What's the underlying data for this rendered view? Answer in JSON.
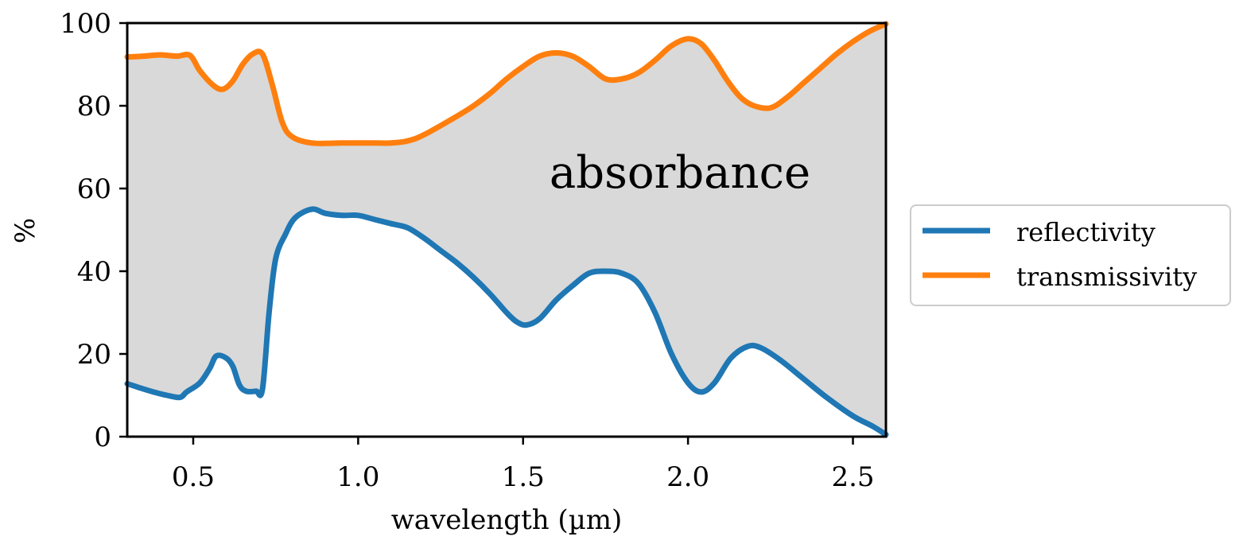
{
  "chart_data": {
    "type": "line",
    "xlabel": "wavelength (µm)",
    "ylabel": "%",
    "xlim": [
      0.3,
      2.6
    ],
    "ylim": [
      0,
      100
    ],
    "x_ticks": [
      0.5,
      1.0,
      1.5,
      2.0,
      2.5
    ],
    "x_tick_labels": [
      "0.5",
      "1.0",
      "1.5",
      "2.0",
      "2.5"
    ],
    "y_ticks": [
      0,
      20,
      40,
      60,
      80,
      100
    ],
    "y_tick_labels": [
      "0",
      "20",
      "40",
      "60",
      "80",
      "100"
    ],
    "grid": false,
    "legend_position": "outside-right",
    "fill_between": {
      "lower": "reflectivity",
      "upper": "transmissivity",
      "color": "#d9d9d9",
      "label": "absorbance"
    },
    "series": [
      {
        "name": "reflectivity",
        "color": "#1f77b4",
        "points": [
          [
            0.3,
            12.8
          ],
          [
            0.35,
            11.5
          ],
          [
            0.38,
            10.8
          ],
          [
            0.42,
            10
          ],
          [
            0.46,
            9.5
          ],
          [
            0.48,
            10.8
          ],
          [
            0.52,
            13
          ],
          [
            0.55,
            16.5
          ],
          [
            0.57,
            19.5
          ],
          [
            0.6,
            19
          ],
          [
            0.62,
            17
          ],
          [
            0.64,
            12.5
          ],
          [
            0.66,
            11
          ],
          [
            0.69,
            11
          ],
          [
            0.71,
            11.5
          ],
          [
            0.73,
            30
          ],
          [
            0.75,
            43
          ],
          [
            0.78,
            49
          ],
          [
            0.81,
            53
          ],
          [
            0.86,
            55
          ],
          [
            0.9,
            54
          ],
          [
            0.95,
            53.5
          ],
          [
            1.0,
            53.5
          ],
          [
            1.05,
            52.5
          ],
          [
            1.1,
            51.5
          ],
          [
            1.15,
            50.5
          ],
          [
            1.2,
            48
          ],
          [
            1.25,
            45
          ],
          [
            1.3,
            42
          ],
          [
            1.35,
            38.5
          ],
          [
            1.4,
            34.5
          ],
          [
            1.45,
            30
          ],
          [
            1.48,
            27.8
          ],
          [
            1.51,
            27
          ],
          [
            1.55,
            28.5
          ],
          [
            1.6,
            33
          ],
          [
            1.65,
            36.5
          ],
          [
            1.7,
            39.5
          ],
          [
            1.75,
            40
          ],
          [
            1.8,
            39.5
          ],
          [
            1.85,
            37
          ],
          [
            1.9,
            30
          ],
          [
            1.95,
            20
          ],
          [
            2.0,
            13
          ],
          [
            2.04,
            10.8
          ],
          [
            2.08,
            13
          ],
          [
            2.13,
            19
          ],
          [
            2.18,
            21.8
          ],
          [
            2.22,
            21.5
          ],
          [
            2.28,
            18.5
          ],
          [
            2.35,
            14
          ],
          [
            2.42,
            9.5
          ],
          [
            2.5,
            5
          ],
          [
            2.56,
            2.5
          ],
          [
            2.6,
            0.5
          ]
        ]
      },
      {
        "name": "transmissivity",
        "color": "#ff7f0e",
        "points": [
          [
            0.3,
            91.8
          ],
          [
            0.35,
            92
          ],
          [
            0.4,
            92.3
          ],
          [
            0.45,
            92
          ],
          [
            0.49,
            92.2
          ],
          [
            0.52,
            88.5
          ],
          [
            0.56,
            85
          ],
          [
            0.59,
            84
          ],
          [
            0.62,
            86
          ],
          [
            0.65,
            90
          ],
          [
            0.68,
            92.5
          ],
          [
            0.71,
            92.5
          ],
          [
            0.74,
            85
          ],
          [
            0.77,
            76
          ],
          [
            0.8,
            72.5
          ],
          [
            0.86,
            71
          ],
          [
            0.95,
            71
          ],
          [
            1.05,
            71
          ],
          [
            1.1,
            71
          ],
          [
            1.15,
            71.5
          ],
          [
            1.2,
            73
          ],
          [
            1.3,
            77.5
          ],
          [
            1.35,
            80
          ],
          [
            1.4,
            83
          ],
          [
            1.45,
            86.5
          ],
          [
            1.5,
            89.5
          ],
          [
            1.55,
            92
          ],
          [
            1.6,
            92.8
          ],
          [
            1.65,
            92
          ],
          [
            1.7,
            89.5
          ],
          [
            1.75,
            86.5
          ],
          [
            1.8,
            86.5
          ],
          [
            1.85,
            88
          ],
          [
            1.9,
            91
          ],
          [
            1.95,
            94.5
          ],
          [
            2.0,
            96.2
          ],
          [
            2.04,
            95
          ],
          [
            2.08,
            91
          ],
          [
            2.12,
            86
          ],
          [
            2.16,
            82
          ],
          [
            2.2,
            80
          ],
          [
            2.25,
            79.5
          ],
          [
            2.3,
            82
          ],
          [
            2.35,
            85.5
          ],
          [
            2.4,
            89
          ],
          [
            2.45,
            92.5
          ],
          [
            2.5,
            95.5
          ],
          [
            2.55,
            98
          ],
          [
            2.6,
            99.8
          ]
        ]
      }
    ]
  }
}
